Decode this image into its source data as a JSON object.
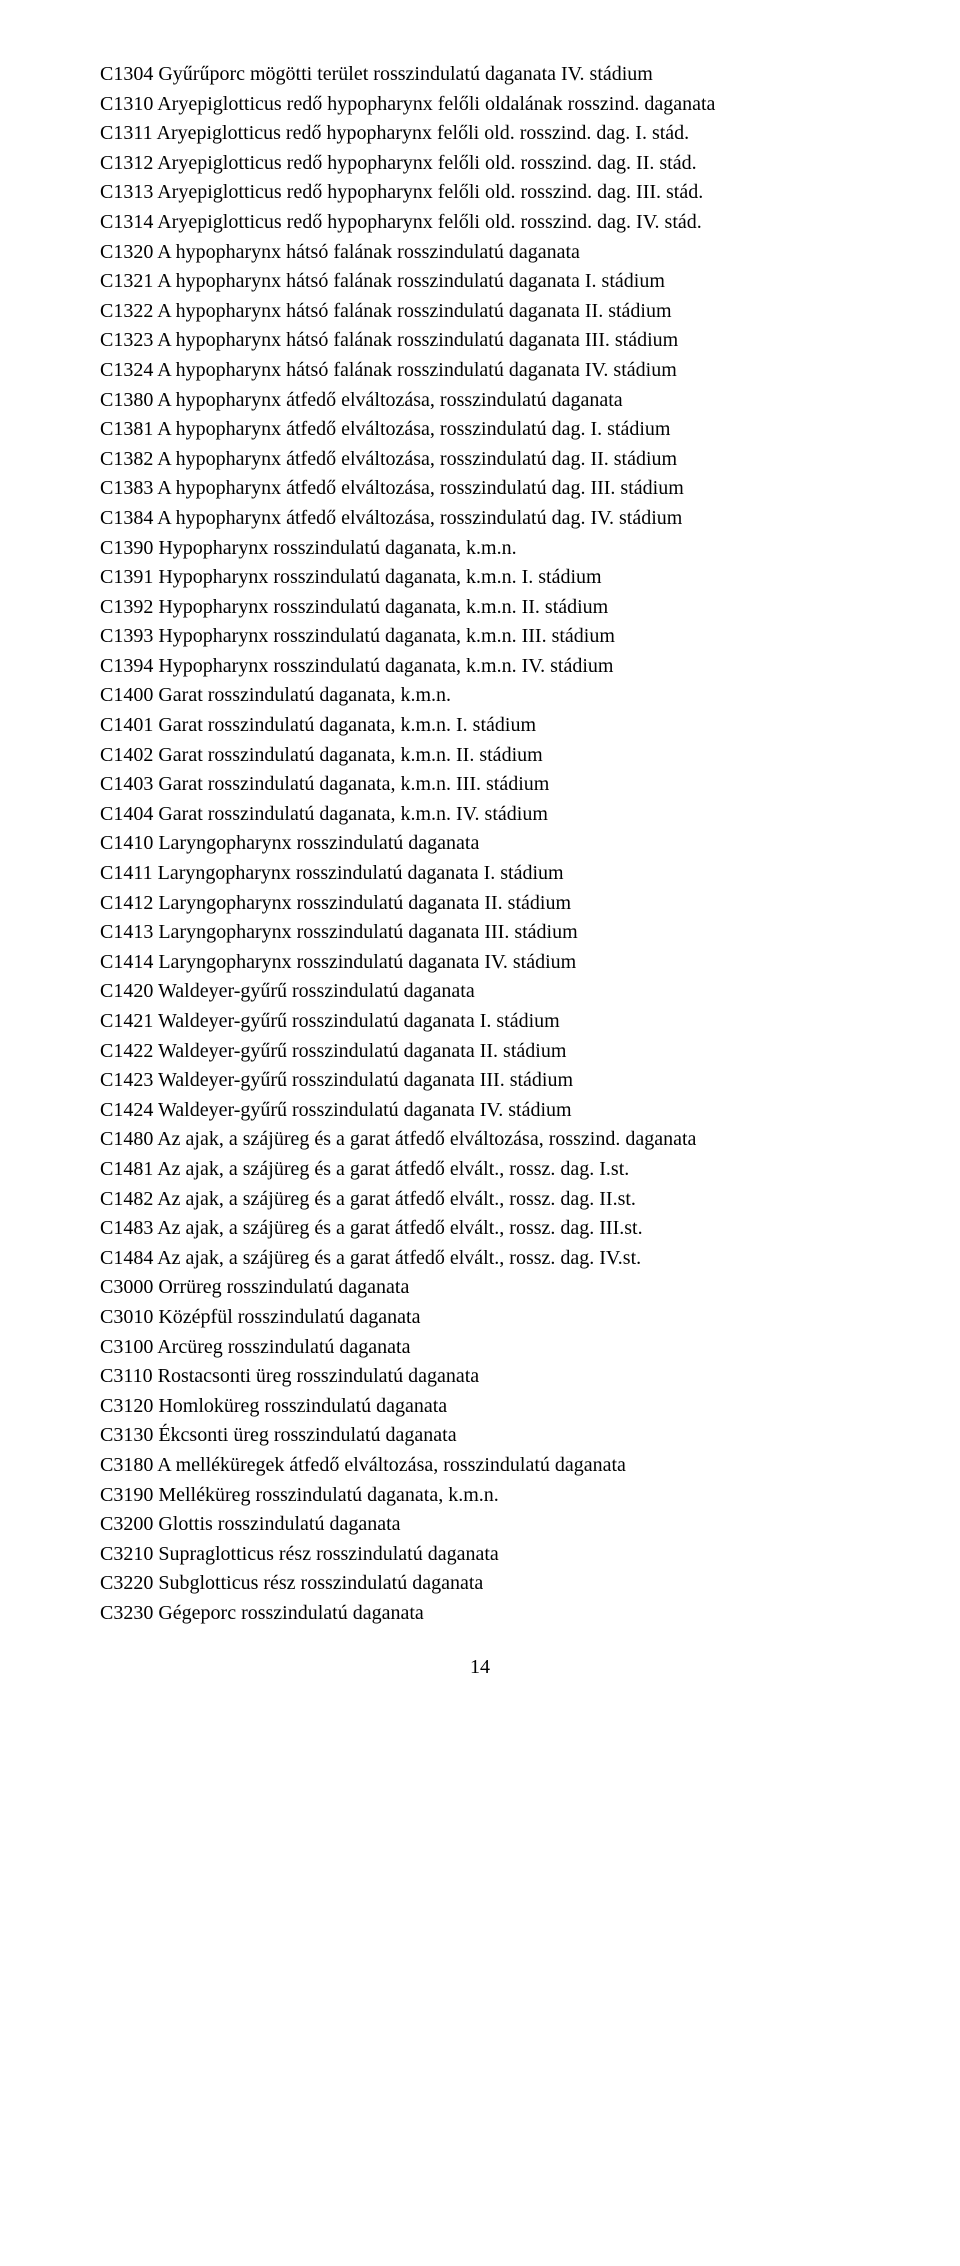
{
  "font": {
    "family": "Times New Roman",
    "size_pt": 15,
    "color": "#000000"
  },
  "page_number": "14",
  "lines": [
    "C1304 Gyűrűporc mögötti terület rosszindulatú daganata IV. stádium",
    "C1310 Aryepiglotticus redő hypopharynx felőli oldalának rosszind. daganata",
    "C1311 Aryepiglotticus redő hypopharynx felőli old. rosszind. dag. I. stád.",
    "C1312 Aryepiglotticus redő hypopharynx felőli old. rosszind. dag. II. stád.",
    "C1313 Aryepiglotticus redő hypopharynx felőli old. rosszind. dag. III. stád.",
    "C1314 Aryepiglotticus redő hypopharynx felőli old. rosszind. dag. IV. stád.",
    "C1320 A hypopharynx hátsó falának rosszindulatú daganata",
    "C1321 A hypopharynx hátsó falának rosszindulatú daganata I. stádium",
    "C1322 A hypopharynx hátsó falának rosszindulatú daganata II. stádium",
    "C1323 A hypopharynx hátsó falának rosszindulatú daganata III. stádium",
    "C1324 A hypopharynx hátsó falának rosszindulatú daganata IV. stádium",
    "C1380 A hypopharynx átfedő elváltozása, rosszindulatú daganata",
    "C1381 A hypopharynx átfedő elváltozása, rosszindulatú dag. I. stádium",
    "C1382 A hypopharynx átfedő elváltozása, rosszindulatú dag. II. stádium",
    "C1383 A hypopharynx átfedő elváltozása, rosszindulatú dag. III. stádium",
    "C1384 A hypopharynx átfedő elváltozása, rosszindulatú dag. IV. stádium",
    "C1390 Hypopharynx rosszindulatú daganata, k.m.n.",
    "C1391 Hypopharynx rosszindulatú daganata, k.m.n. I. stádium",
    "C1392 Hypopharynx rosszindulatú daganata, k.m.n. II. stádium",
    "C1393 Hypopharynx rosszindulatú daganata, k.m.n. III. stádium",
    "C1394 Hypopharynx rosszindulatú daganata, k.m.n. IV. stádium",
    "C1400 Garat rosszindulatú daganata, k.m.n.",
    "C1401 Garat rosszindulatú daganata, k.m.n. I. stádium",
    "C1402 Garat rosszindulatú daganata, k.m.n. II. stádium",
    "C1403 Garat rosszindulatú daganata, k.m.n. III. stádium",
    "C1404 Garat rosszindulatú daganata, k.m.n. IV. stádium",
    "C1410 Laryngopharynx rosszindulatú daganata",
    "C1411 Laryngopharynx rosszindulatú daganata I. stádium",
    "C1412 Laryngopharynx rosszindulatú daganata II. stádium",
    "C1413 Laryngopharynx rosszindulatú daganata III. stádium",
    "C1414 Laryngopharynx rosszindulatú daganata IV. stádium",
    "C1420 Waldeyer-gyűrű rosszindulatú daganata",
    "C1421 Waldeyer-gyűrű rosszindulatú daganata I. stádium",
    "C1422 Waldeyer-gyűrű rosszindulatú daganata II. stádium",
    "C1423 Waldeyer-gyűrű rosszindulatú daganata III. stádium",
    "C1424 Waldeyer-gyűrű rosszindulatú daganata IV. stádium",
    "C1480 Az ajak, a szájüreg és a garat átfedő elváltozása, rosszind. daganata",
    "C1481 Az ajak, a szájüreg és a garat átfedő elvált., rossz. dag. I.st.",
    "C1482 Az ajak, a szájüreg és a garat átfedő elvált., rossz. dag. II.st.",
    "C1483 Az ajak, a szájüreg és a garat átfedő elvált., rossz. dag. III.st.",
    "C1484 Az ajak, a szájüreg és a garat átfedő elvált., rossz. dag. IV.st.",
    "C3000 Orrüreg rosszindulatú daganata",
    "C3010 Középfül rosszindulatú daganata",
    "C3100 Arcüreg rosszindulatú daganata",
    "C3110 Rostacsonti üreg rosszindulatú daganata",
    "C3120 Homloküreg rosszindulatú daganata",
    "C3130 Ékcsonti üreg rosszindulatú daganata",
    "C3180 A melléküregek átfedő elváltozása, rosszindulatú daganata",
    "C3190 Melléküreg rosszindulatú daganata, k.m.n.",
    "C3200 Glottis rosszindulatú daganata",
    "C3210 Supraglotticus rész rosszindulatú daganata",
    "C3220 Subglotticus rész rosszindulatú daganata",
    "C3230 Gégeporc rosszindulatú daganata"
  ]
}
